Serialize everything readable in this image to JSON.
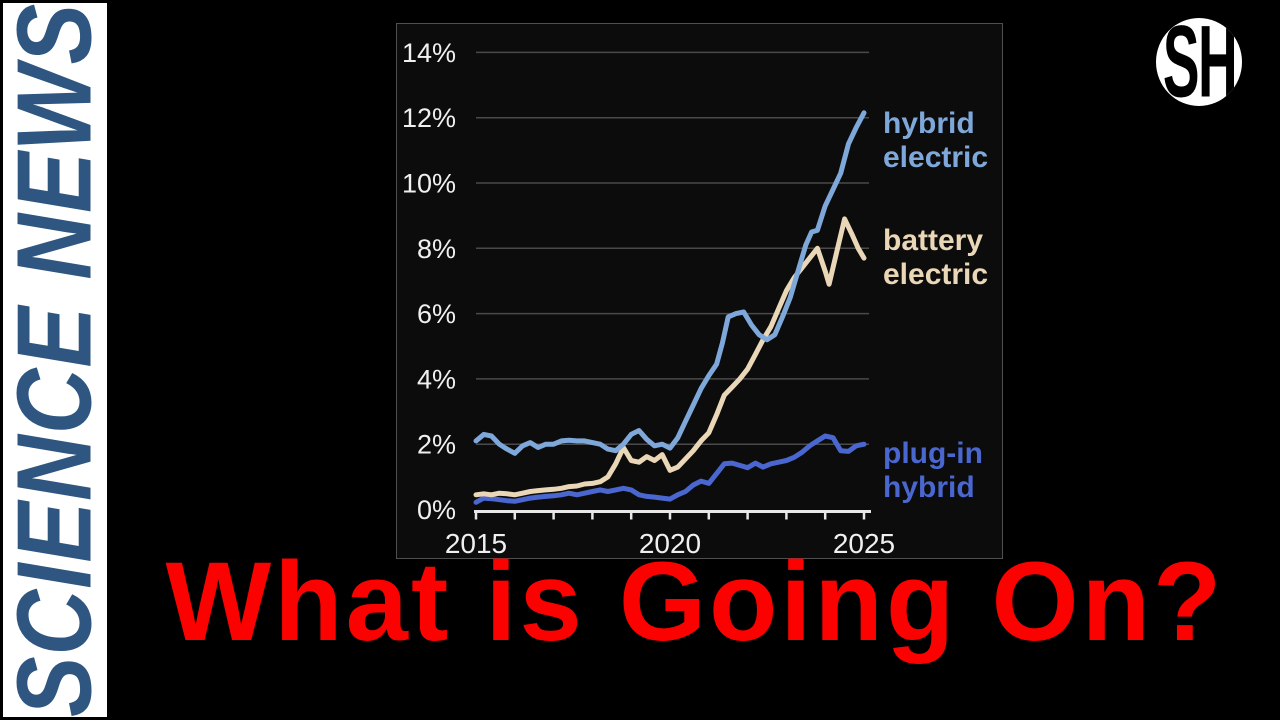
{
  "sidebar": {
    "vertical_text": "SCIENCE NEWS",
    "text_color": "#2e5680",
    "bg": "#ffffff"
  },
  "logo": {
    "text": "SH",
    "bg": "#ffffff",
    "fg": "#000000"
  },
  "banner": {
    "title": "What is Going On?",
    "color": "#fb0200"
  },
  "chart_data": {
    "type": "line",
    "title": "",
    "xlabel": "",
    "ylabel": "",
    "x_unit": "year",
    "xlim": [
      2015,
      2025
    ],
    "ylim": [
      0,
      14
    ],
    "grid": "horizontal",
    "legend_position": "right-inline",
    "yticks": [
      0,
      2,
      4,
      6,
      8,
      10,
      12,
      14
    ],
    "ytick_labels": [
      "0%",
      "2%",
      "4%",
      "6%",
      "8%",
      "10%",
      "12%",
      "14%"
    ],
    "xticks": [
      2015,
      2016,
      2017,
      2018,
      2019,
      2020,
      2021,
      2022,
      2023,
      2024,
      2025
    ],
    "xtick_labels": [
      {
        "year": 2015,
        "label": "2015"
      },
      {
        "year": 2020,
        "label": "2020"
      },
      {
        "year": 2025,
        "label": "2025"
      }
    ],
    "colors": {
      "panel_bg": "#0c0c0c",
      "panel_border": "#4f4f4f",
      "gridline": "#4a4a4a",
      "axis": "#e8e8e8",
      "tick_label": "#f0f0f0"
    },
    "series": [
      {
        "name": "plug-in hybrid",
        "label_lines": [
          "plug-in",
          "hybrid"
        ],
        "color": "#4a67cf",
        "x": [
          2015.0,
          2015.2,
          2015.4,
          2015.6,
          2015.8,
          2016.0,
          2016.2,
          2016.4,
          2016.6,
          2016.8,
          2017.0,
          2017.2,
          2017.4,
          2017.6,
          2017.8,
          2018.0,
          2018.2,
          2018.4,
          2018.6,
          2018.8,
          2019.0,
          2019.2,
          2019.4,
          2019.6,
          2019.8,
          2020.0,
          2020.2,
          2020.4,
          2020.6,
          2020.8,
          2021.0,
          2021.2,
          2021.4,
          2021.6,
          2021.8,
          2022.0,
          2022.2,
          2022.4,
          2022.6,
          2022.8,
          2023.0,
          2023.2,
          2023.4,
          2023.6,
          2023.8,
          2024.0,
          2024.2,
          2024.4,
          2024.6,
          2024.8,
          2025.0
        ],
        "y": [
          0.22,
          0.35,
          0.33,
          0.3,
          0.27,
          0.25,
          0.3,
          0.35,
          0.38,
          0.4,
          0.42,
          0.45,
          0.5,
          0.45,
          0.5,
          0.55,
          0.6,
          0.55,
          0.6,
          0.65,
          0.6,
          0.45,
          0.4,
          0.38,
          0.35,
          0.32,
          0.45,
          0.55,
          0.75,
          0.87,
          0.8,
          1.1,
          1.4,
          1.42,
          1.35,
          1.28,
          1.42,
          1.3,
          1.4,
          1.45,
          1.5,
          1.6,
          1.75,
          1.95,
          2.1,
          2.25,
          2.2,
          1.8,
          1.78,
          1.95,
          2.0
        ]
      },
      {
        "name": "battery electric",
        "label_lines": [
          "battery",
          "electric"
        ],
        "color": "#ead7b7",
        "x": [
          2015.0,
          2015.2,
          2015.4,
          2015.6,
          2015.8,
          2016.0,
          2016.2,
          2016.4,
          2016.6,
          2016.8,
          2017.0,
          2017.2,
          2017.4,
          2017.6,
          2017.8,
          2018.0,
          2018.2,
          2018.4,
          2018.6,
          2018.8,
          2019.0,
          2019.2,
          2019.4,
          2019.6,
          2019.8,
          2020.0,
          2020.2,
          2020.4,
          2020.6,
          2020.8,
          2021.0,
          2021.2,
          2021.4,
          2021.6,
          2021.8,
          2022.0,
          2022.2,
          2022.4,
          2022.6,
          2022.8,
          2023.0,
          2023.2,
          2023.4,
          2023.6,
          2023.8,
          2024.0,
          2024.1,
          2024.3,
          2024.5,
          2024.7,
          2024.85,
          2025.0
        ],
        "y": [
          0.45,
          0.48,
          0.45,
          0.5,
          0.48,
          0.45,
          0.5,
          0.55,
          0.58,
          0.6,
          0.62,
          0.65,
          0.7,
          0.72,
          0.78,
          0.8,
          0.85,
          1.0,
          1.4,
          1.9,
          1.5,
          1.45,
          1.62,
          1.5,
          1.68,
          1.2,
          1.3,
          1.55,
          1.8,
          2.1,
          2.35,
          2.9,
          3.5,
          3.75,
          4.0,
          4.3,
          4.75,
          5.2,
          5.6,
          6.15,
          6.7,
          7.1,
          7.4,
          7.7,
          8.0,
          7.3,
          6.9,
          7.9,
          8.9,
          8.4,
          8.0,
          7.7
        ]
      },
      {
        "name": "hybrid electric",
        "label_lines": [
          "hybrid",
          "electric"
        ],
        "color": "#7fa8da",
        "x": [
          2015.0,
          2015.2,
          2015.4,
          2015.6,
          2015.8,
          2016.0,
          2016.2,
          2016.4,
          2016.6,
          2016.8,
          2017.0,
          2017.2,
          2017.4,
          2017.6,
          2017.8,
          2018.0,
          2018.2,
          2018.4,
          2018.6,
          2018.8,
          2019.0,
          2019.2,
          2019.4,
          2019.6,
          2019.8,
          2020.0,
          2020.2,
          2020.4,
          2020.6,
          2020.8,
          2021.0,
          2021.2,
          2021.35,
          2021.5,
          2021.7,
          2021.9,
          2022.1,
          2022.3,
          2022.5,
          2022.7,
          2022.9,
          2023.1,
          2023.3,
          2023.5,
          2023.65,
          2023.8,
          2024.0,
          2024.2,
          2024.4,
          2024.6,
          2024.8,
          2025.0
        ],
        "y": [
          2.1,
          2.3,
          2.25,
          2.0,
          1.85,
          1.72,
          1.95,
          2.05,
          1.9,
          2.0,
          2.0,
          2.1,
          2.12,
          2.1,
          2.1,
          2.05,
          2.0,
          1.85,
          1.8,
          2.0,
          2.3,
          2.42,
          2.15,
          1.95,
          2.0,
          1.88,
          2.2,
          2.7,
          3.2,
          3.7,
          4.1,
          4.45,
          5.1,
          5.9,
          6.0,
          6.05,
          5.65,
          5.35,
          5.2,
          5.35,
          5.9,
          6.5,
          7.3,
          8.1,
          8.5,
          8.55,
          9.3,
          9.8,
          10.3,
          11.2,
          11.7,
          12.15
        ]
      }
    ]
  }
}
